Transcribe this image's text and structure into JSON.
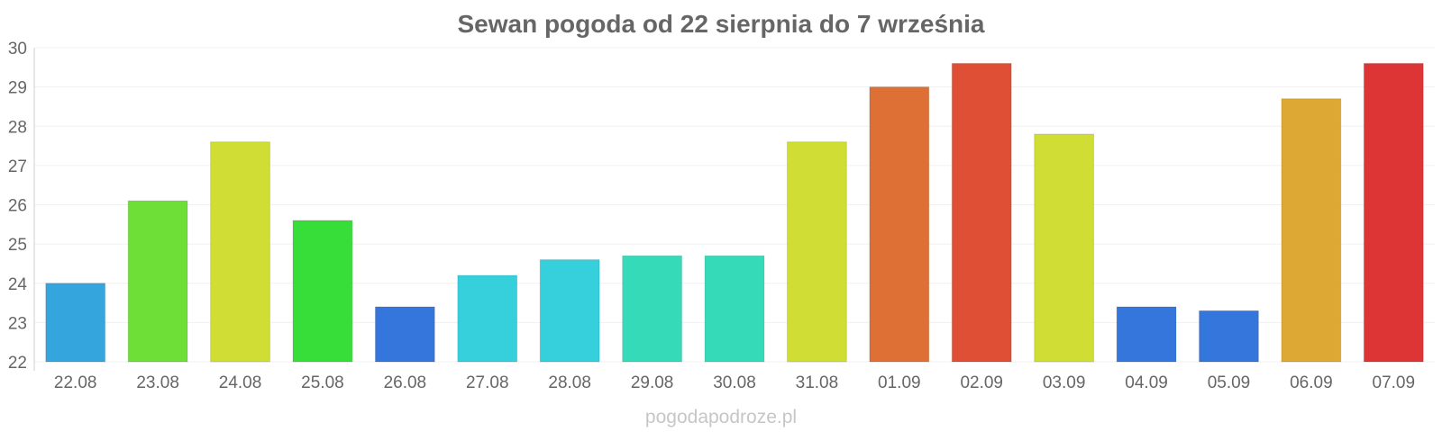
{
  "chart_data": {
    "type": "bar",
    "title": "Sewan pogoda od 22 sierpnia do 7 września",
    "xlabel": "",
    "ylabel": "",
    "ylim": [
      22,
      30
    ],
    "yticks": [
      "22",
      "23",
      "24",
      "25",
      "26",
      "27",
      "28",
      "29",
      "30"
    ],
    "grid": true,
    "categories": [
      "22.08",
      "23.08",
      "24.08",
      "25.08",
      "26.08",
      "27.08",
      "28.08",
      "29.08",
      "30.08",
      "31.08",
      "01.09",
      "02.09",
      "03.09",
      "04.09",
      "05.09",
      "06.09",
      "07.09"
    ],
    "values": [
      24.0,
      26.1,
      27.6,
      25.6,
      23.4,
      24.2,
      24.6,
      24.7,
      24.7,
      27.6,
      29.0,
      29.6,
      27.8,
      23.4,
      23.3,
      28.7,
      29.6
    ],
    "colors": [
      "#35a6dd",
      "#6ddf37",
      "#cfdd34",
      "#37dd38",
      "#3576dd",
      "#36cfdc",
      "#36cfdc",
      "#35dbb9",
      "#35dbb9",
      "#cfdd34",
      "#de7035",
      "#de4f35",
      "#cfdd34",
      "#3576dd",
      "#3576dd",
      "#dda934",
      "#dd3535"
    ]
  },
  "watermark": "pogodapodroze.pl"
}
